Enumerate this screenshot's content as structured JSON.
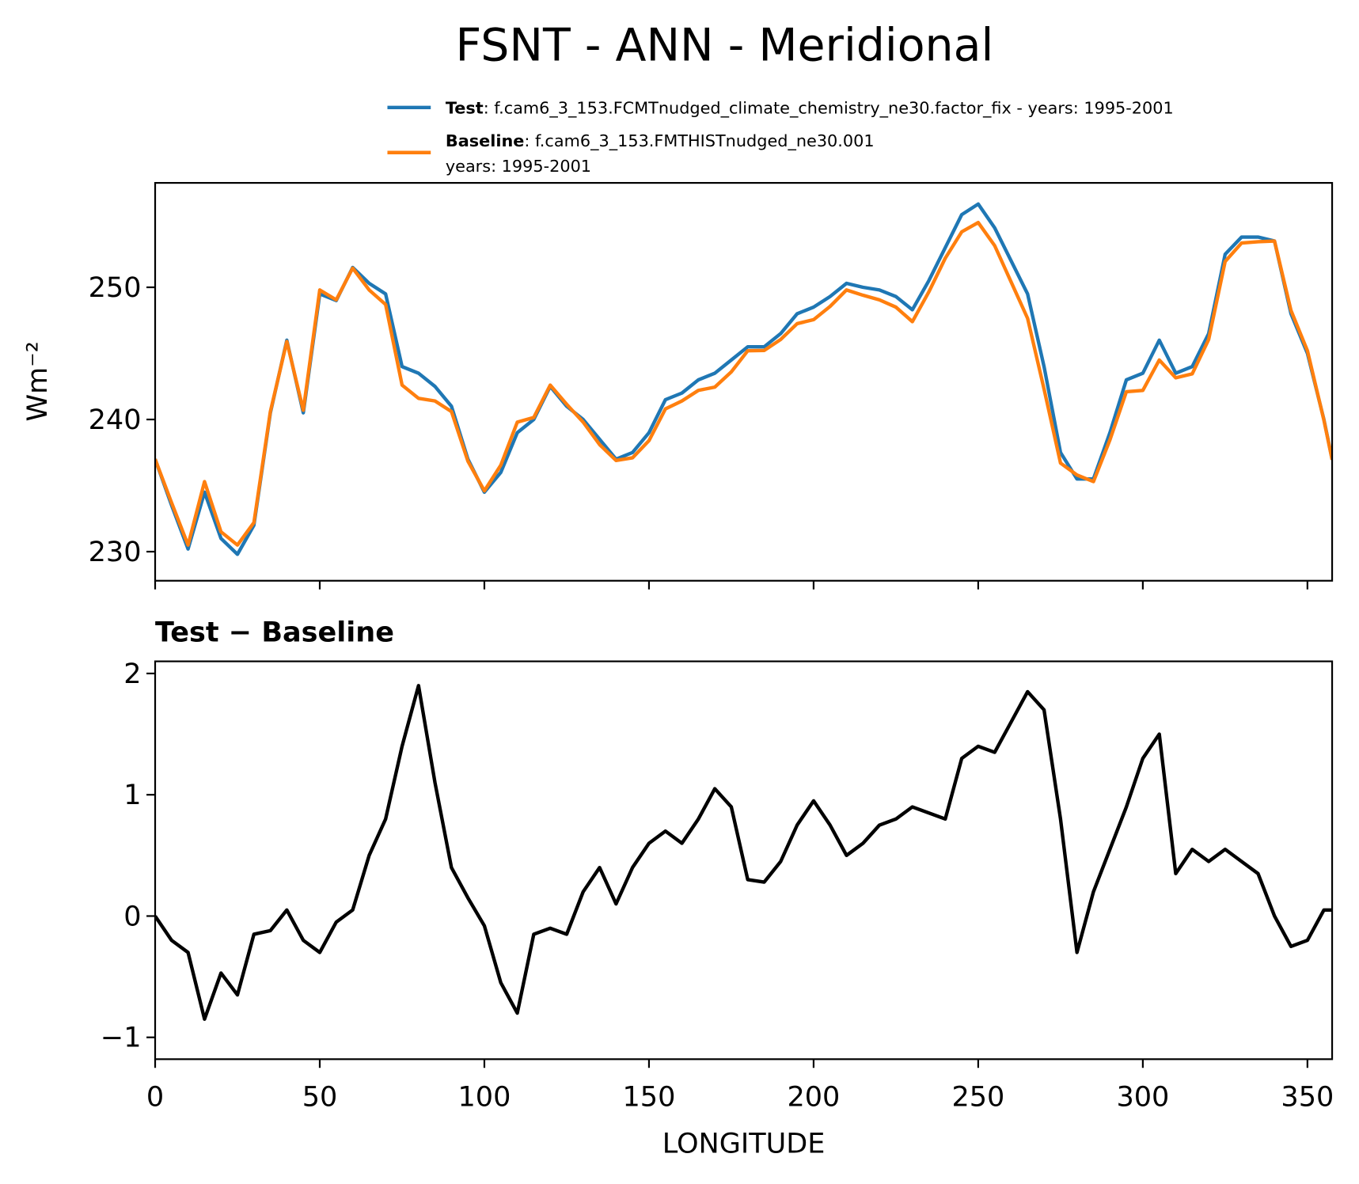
{
  "chart_data": [
    {
      "type": "line",
      "title": "FSNT - ANN - Meridional",
      "ylabel": "Wm⁻²",
      "x": [
        0,
        5,
        10,
        15,
        20,
        25,
        30,
        35,
        40,
        45,
        50,
        55,
        60,
        65,
        70,
        75,
        80,
        85,
        90,
        95,
        100,
        105,
        110,
        115,
        120,
        125,
        130,
        135,
        140,
        145,
        150,
        155,
        160,
        165,
        170,
        175,
        180,
        185,
        190,
        195,
        200,
        205,
        210,
        215,
        220,
        225,
        230,
        235,
        240,
        245,
        250,
        255,
        260,
        265,
        270,
        275,
        280,
        285,
        290,
        295,
        300,
        305,
        310,
        315,
        320,
        325,
        330,
        335,
        340,
        345,
        350,
        355,
        357.5
      ],
      "series": [
        {
          "name": "Test",
          "description": [
            ": f.cam6_3_153.FCMTnudged_climate_chemistry_ne30.factor_fix - years: 1995-2001"
          ],
          "color": "#1f77b4",
          "values": [
            237,
            233.5,
            230.2,
            234.5,
            231,
            229.8,
            232,
            240.5,
            246,
            240.5,
            249.5,
            249,
            251.5,
            250.3,
            249.5,
            244,
            243.5,
            242.5,
            241,
            237,
            234.5,
            236,
            239,
            240,
            242.5,
            241,
            240,
            238.5,
            237,
            237.5,
            239,
            241.5,
            242,
            243,
            243.5,
            244.5,
            245.5,
            245.5,
            246.5,
            248,
            248.5,
            249.3,
            250.3,
            250,
            249.8,
            249.3,
            248.3,
            250.5,
            253,
            255.5,
            256.3,
            254.5,
            252,
            249.5,
            244,
            237.5,
            235.5,
            235.5,
            239,
            243,
            243.5,
            246,
            243.5,
            244,
            246.5,
            252.5,
            253.8,
            253.8,
            253.5,
            248,
            245,
            240,
            237
          ]
        },
        {
          "name": "Baseline",
          "description": [
            ": f.cam6_3_153.FMTHISTnudged_ne30.001",
            "years: 1995-2001"
          ],
          "color": "#ff7f0e",
          "values": [
            237,
            233.7,
            230.5,
            235.3,
            231.5,
            230.5,
            232.2,
            240.6,
            245.9,
            240.7,
            249.8,
            249.05,
            251.45,
            249.8,
            248.7,
            242.6,
            241.6,
            241.4,
            240.6,
            236.85,
            234.6,
            236.55,
            239.8,
            240.15,
            242.6,
            241.15,
            239.8,
            238.1,
            236.9,
            237.1,
            238.4,
            240.8,
            241.4,
            242.2,
            242.45,
            243.6,
            245.2,
            245.22,
            246.05,
            247.25,
            247.55,
            248.55,
            249.8,
            249.4,
            249.05,
            248.5,
            247.4,
            249.65,
            252.2,
            254.2,
            254.9,
            253.15,
            250.4,
            247.65,
            242.3,
            236.7,
            235.8,
            235.3,
            238.45,
            242.1,
            242.2,
            244.5,
            243.15,
            243.45,
            246.05,
            251.95,
            253.35,
            253.45,
            253.5,
            248.25,
            245.2,
            239.95,
            236.95
          ]
        }
      ],
      "xlim": [
        0,
        357.5
      ],
      "xticks": [
        0,
        50,
        100,
        150,
        200,
        250,
        300,
        350
      ],
      "ylim": [
        227.8,
        257.9
      ],
      "yticks": [
        230,
        240,
        250
      ],
      "legend": "upper right"
    },
    {
      "type": "line",
      "title": "Test − Baseline",
      "xlabel": "LONGITUDE",
      "x": [
        0,
        5,
        10,
        15,
        20,
        25,
        30,
        35,
        40,
        45,
        50,
        55,
        60,
        65,
        70,
        75,
        80,
        85,
        90,
        95,
        100,
        105,
        110,
        115,
        120,
        125,
        130,
        135,
        140,
        145,
        150,
        155,
        160,
        165,
        170,
        175,
        180,
        185,
        190,
        195,
        200,
        205,
        210,
        215,
        220,
        225,
        230,
        235,
        240,
        245,
        250,
        255,
        260,
        265,
        270,
        275,
        280,
        285,
        290,
        295,
        300,
        305,
        310,
        315,
        320,
        325,
        330,
        335,
        340,
        345,
        350,
        355,
        357.5
      ],
      "series": [
        {
          "color": "#000000",
          "values": [
            0,
            -0.2,
            -0.3,
            -0.85,
            -0.47,
            -0.65,
            -0.15,
            -0.12,
            0.05,
            -0.2,
            -0.3,
            -0.05,
            0.05,
            0.5,
            0.8,
            1.4,
            1.9,
            1.1,
            0.4,
            0.15,
            -0.08,
            -0.55,
            -0.8,
            -0.15,
            -0.1,
            -0.15,
            0.2,
            0.4,
            0.1,
            0.4,
            0.6,
            0.7,
            0.6,
            0.8,
            1.05,
            0.9,
            0.3,
            0.28,
            0.45,
            0.75,
            0.95,
            0.75,
            0.5,
            0.6,
            0.75,
            0.8,
            0.9,
            0.85,
            0.8,
            1.3,
            1.4,
            1.35,
            1.6,
            1.85,
            1.7,
            0.8,
            -0.3,
            0.2,
            0.55,
            0.9,
            1.3,
            1.5,
            0.35,
            0.55,
            0.45,
            0.55,
            0.45,
            0.35,
            0,
            -0.25,
            -0.2,
            0.05,
            0.05
          ]
        }
      ],
      "xlim": [
        0,
        357.5
      ],
      "xticks": [
        0,
        50,
        100,
        150,
        200,
        250,
        300,
        350
      ],
      "ylim": [
        -1.18,
        2.1
      ],
      "yticks": [
        {
          "value": -1,
          "label": "−1"
        },
        0,
        1,
        2
      ]
    }
  ]
}
